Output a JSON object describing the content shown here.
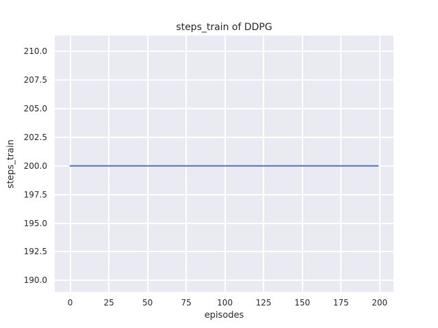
{
  "chart_data": {
    "type": "line",
    "title": "steps_train of DDPG",
    "xlabel": "episodes",
    "ylabel": "steps_train",
    "xlim": [
      -10,
      209
    ],
    "ylim": [
      189.0,
      211.4
    ],
    "x_tick_values": [
      0,
      25,
      50,
      75,
      100,
      125,
      150,
      175,
      200
    ],
    "x_tick_labels": [
      "0",
      "25",
      "50",
      "75",
      "100",
      "125",
      "150",
      "175",
      "200"
    ],
    "y_tick_values": [
      190.0,
      192.5,
      195.0,
      197.5,
      200.0,
      202.5,
      205.0,
      207.5,
      210.0
    ],
    "y_tick_labels": [
      "190.0",
      "192.5",
      "195.0",
      "197.5",
      "200.0",
      "202.5",
      "205.0",
      "207.5",
      "210.0"
    ],
    "grid": true,
    "legend_position": "none",
    "plot_background": "#eaeaf2",
    "grid_color": "#ffffff",
    "text_color": "#262626",
    "series": [
      {
        "name": "steps_train",
        "color": "#4c72b0",
        "x": [
          0,
          199
        ],
        "y": [
          200.0,
          200.0
        ]
      }
    ]
  }
}
